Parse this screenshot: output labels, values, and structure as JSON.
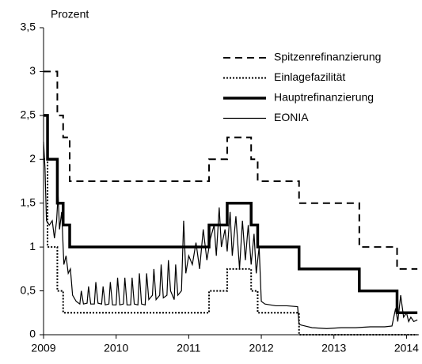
{
  "chart_data": {
    "type": "line",
    "ylabel": "Prozent",
    "xlim": [
      2009,
      2014.17
    ],
    "ylim": [
      0,
      3.5
    ],
    "xticks": [
      2009,
      2010,
      2011,
      2012,
      2013,
      2014
    ],
    "yticks": [
      0,
      {
        "value": 0.5,
        "label": "0,5"
      },
      1,
      {
        "value": 1.5,
        "label": "1,5"
      },
      2,
      {
        "value": 2.5,
        "label": "2,5"
      },
      3,
      {
        "value": 3.5,
        "label": "3,5"
      }
    ],
    "grid": false,
    "legend": "upper right",
    "series": [
      {
        "name": "Spitzenrefinanzierung",
        "color": "#000000",
        "style": "dashed",
        "x": [
          2009,
          2009.19,
          2009.19,
          2009.27,
          2009.27,
          2009.36,
          2009.36,
          2011.28,
          2011.28,
          2011.53,
          2011.53,
          2011.86,
          2011.86,
          2011.95,
          2011.95,
          2012.52,
          2012.52,
          2013.35,
          2013.35,
          2013.87,
          2013.87,
          2014.15
        ],
        "values": [
          3,
          3,
          2.5,
          2.5,
          2.25,
          2.25,
          1.75,
          1.75,
          2,
          2,
          2.25,
          2.25,
          2,
          2,
          1.75,
          1.75,
          1.5,
          1.5,
          1,
          1,
          0.75,
          0.75
        ]
      },
      {
        "name": "Einlagefazilität",
        "color": "#000000",
        "style": "dotted",
        "x": [
          2009,
          2009.055,
          2009.055,
          2009.19,
          2009.19,
          2009.27,
          2009.27,
          2011.28,
          2011.28,
          2011.53,
          2011.53,
          2011.86,
          2011.86,
          2011.95,
          2011.95,
          2012.52,
          2012.52,
          2014.15
        ],
        "values": [
          2,
          2,
          1,
          1,
          0.5,
          0.5,
          0.25,
          0.25,
          0.5,
          0.5,
          0.75,
          0.75,
          0.5,
          0.5,
          0.25,
          0.25,
          0,
          0
        ]
      },
      {
        "name": "Hauptrefinanzierung",
        "color": "#000000",
        "style": "thick",
        "x": [
          2009,
          2009.055,
          2009.055,
          2009.19,
          2009.19,
          2009.27,
          2009.27,
          2009.36,
          2009.36,
          2011.28,
          2011.28,
          2011.53,
          2011.53,
          2011.86,
          2011.86,
          2011.95,
          2011.95,
          2012.52,
          2012.52,
          2013.35,
          2013.35,
          2013.87,
          2013.87,
          2014.15
        ],
        "values": [
          2.5,
          2.5,
          2,
          2,
          1.5,
          1.5,
          1.25,
          1.25,
          1,
          1,
          1.25,
          1.25,
          1.5,
          1.5,
          1.25,
          1.25,
          1,
          1,
          0.75,
          0.75,
          0.5,
          0.5,
          0.25,
          0.25
        ]
      },
      {
        "name": "EONIA",
        "color": "#000000",
        "style": "thin",
        "x": [
          2009,
          2009.02,
          2009.04,
          2009.08,
          2009.12,
          2009.15,
          2009.18,
          2009.2,
          2009.22,
          2009.25,
          2009.28,
          2009.31,
          2009.34,
          2009.37,
          2009.4,
          2009.45,
          2009.5,
          2009.52,
          2009.55,
          2009.6,
          2009.62,
          2009.65,
          2009.7,
          2009.72,
          2009.75,
          2009.8,
          2009.82,
          2009.85,
          2009.9,
          2009.92,
          2009.95,
          2010.0,
          2010.02,
          2010.05,
          2010.1,
          2010.12,
          2010.15,
          2010.2,
          2010.22,
          2010.25,
          2010.3,
          2010.32,
          2010.35,
          2010.4,
          2010.42,
          2010.45,
          2010.5,
          2010.52,
          2010.55,
          2010.6,
          2010.62,
          2010.65,
          2010.7,
          2010.72,
          2010.75,
          2010.8,
          2010.82,
          2010.85,
          2010.9,
          2010.93,
          2010.96,
          2011.0,
          2011.05,
          2011.1,
          2011.15,
          2011.2,
          2011.25,
          2011.3,
          2011.35,
          2011.38,
          2011.42,
          2011.45,
          2011.5,
          2011.53,
          2011.57,
          2011.6,
          2011.65,
          2011.7,
          2011.74,
          2011.78,
          2011.82,
          2011.86,
          2011.9,
          2011.93,
          2011.97,
          2012.0,
          2012.05,
          2012.2,
          2012.35,
          2012.5,
          2012.52,
          2012.55,
          2012.7,
          2012.9,
          2013.1,
          2013.3,
          2013.5,
          2013.7,
          2013.8,
          2013.85,
          2013.88,
          2013.92,
          2013.96,
          2014.0,
          2014.03,
          2014.06,
          2014.1,
          2014.15
        ],
        "values": [
          2.2,
          1.9,
          1.3,
          1.25,
          1.3,
          1.1,
          1.3,
          1.6,
          1.2,
          1.4,
          0.8,
          0.9,
          0.7,
          0.75,
          0.45,
          0.38,
          0.35,
          0.5,
          0.35,
          0.36,
          0.55,
          0.35,
          0.35,
          0.6,
          0.36,
          0.35,
          0.55,
          0.34,
          0.35,
          0.6,
          0.34,
          0.34,
          0.65,
          0.34,
          0.35,
          0.65,
          0.34,
          0.34,
          0.65,
          0.35,
          0.34,
          0.7,
          0.35,
          0.34,
          0.7,
          0.4,
          0.45,
          0.75,
          0.4,
          0.45,
          0.8,
          0.42,
          0.45,
          0.85,
          0.5,
          0.4,
          0.8,
          0.45,
          0.5,
          1.3,
          0.7,
          0.9,
          0.8,
          1.05,
          0.75,
          1.2,
          0.85,
          1.1,
          1.25,
          0.9,
          1.45,
          1.0,
          1.2,
          0.95,
          1.4,
          0.9,
          1.35,
          0.75,
          1.3,
          0.85,
          1.25,
          0.8,
          1.15,
          0.7,
          1.0,
          0.38,
          0.35,
          0.33,
          0.33,
          0.32,
          0.12,
          0.11,
          0.08,
          0.07,
          0.08,
          0.08,
          0.09,
          0.09,
          0.1,
          0.3,
          0.15,
          0.45,
          0.2,
          0.25,
          0.15,
          0.2,
          0.15,
          0.17
        ]
      }
    ]
  }
}
